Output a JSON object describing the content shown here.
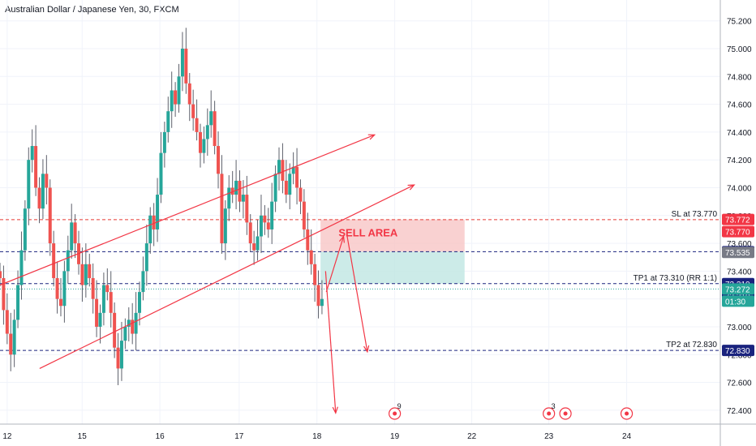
{
  "header": {
    "title": "Australian Dollar / Japanese Yen, 30, FXCM"
  },
  "colors": {
    "up": "#26a69a",
    "down": "#ef5350",
    "wick": "#5d606b",
    "sell_zone": "#f7c6c6",
    "tp_zone": "#bfe6e2",
    "sl_line": "#e53935",
    "tp_line": "#1a237e",
    "arrow": "#f23645",
    "grid": "#f0f3fa",
    "axis_text": "#131722",
    "price_badge": "#1a237e",
    "current_badge": "#26a69a",
    "sl_badge": "#f23645"
  },
  "chart_data": {
    "type": "candlestick",
    "title": "Australian Dollar / Japanese Yen, 30, FXCM",
    "ylim": [
      72.3,
      75.35
    ],
    "y_ticks": [
      "72.400",
      "72.600",
      "72.800",
      "73.000",
      "73.200",
      "73.400",
      "73.600",
      "73.800",
      "74.000",
      "74.200",
      "74.400",
      "74.600",
      "74.800",
      "75.000",
      "75.200"
    ],
    "x_ticks": [
      {
        "label": "12",
        "pos": 0.01
      },
      {
        "label": "15",
        "pos": 0.114
      },
      {
        "label": "16",
        "pos": 0.222
      },
      {
        "label": "17",
        "pos": 0.332
      },
      {
        "label": "18",
        "pos": 0.44
      },
      {
        "label": "19",
        "pos": 0.548
      },
      {
        "label": "22",
        "pos": 0.655
      },
      {
        "label": "23",
        "pos": 0.762
      },
      {
        "label": "24",
        "pos": 0.87
      }
    ],
    "closes": [
      73.35,
      73.12,
      72.95,
      72.8,
      73.05,
      73.3,
      73.55,
      73.85,
      74.2,
      74.3,
      74.0,
      73.85,
      74.1,
      74.0,
      73.6,
      73.35,
      73.2,
      73.15,
      73.4,
      73.55,
      73.75,
      73.6,
      73.45,
      73.3,
      73.45,
      73.35,
      73.2,
      73.0,
      73.1,
      73.3,
      73.25,
      73.1,
      72.85,
      72.7,
      72.9,
      73.0,
      73.05,
      72.95,
      73.1,
      73.25,
      73.4,
      73.6,
      73.8,
      73.7,
      73.95,
      74.25,
      74.4,
      74.55,
      74.7,
      74.6,
      74.8,
      75.0,
      74.75,
      74.6,
      74.5,
      74.4,
      74.25,
      74.35,
      74.45,
      74.55,
      74.3,
      74.1,
      73.6,
      73.85,
      74.0,
      73.95,
      74.05,
      73.9,
      73.95,
      73.75,
      73.6,
      73.55,
      73.65,
      73.8,
      73.75,
      73.7,
      73.9,
      74.1,
      74.2,
      74.05,
      73.95,
      74.1,
      74.15,
      74.0,
      73.9,
      73.7,
      73.55,
      73.45,
      73.3,
      73.15,
      73.2
    ],
    "annotations": {
      "sell_area_label": "SELL AREA",
      "sl_label": "SL at 73.770",
      "tp1_label": "TP1 at 73.310 (RR 1:1)",
      "tp2_label": "TP2 at 72.830"
    },
    "levels": {
      "sell_top": 73.772,
      "sl": 73.77,
      "entry": 73.54,
      "tp1": 73.31,
      "current": 73.272,
      "tp2": 72.83
    },
    "price_badges": [
      {
        "text": "73.772",
        "value": 73.772,
        "kind": "sl"
      },
      {
        "text": "73.770",
        "value": 73.77,
        "kind": "sl"
      },
      {
        "text": "73.540",
        "value": 73.54,
        "kind": "level"
      },
      {
        "text": "73.535",
        "value": 73.535,
        "kind": "gray"
      },
      {
        "text": "73.310",
        "value": 73.31,
        "kind": "level"
      },
      {
        "text": "73.310",
        "value": 73.31,
        "kind": "level"
      },
      {
        "text": "73.272",
        "value": 73.272,
        "kind": "current"
      },
      {
        "text": "01:30",
        "value": 73.272,
        "kind": "current_time"
      },
      {
        "text": "72.830",
        "value": 72.83,
        "kind": "level"
      }
    ],
    "events": [
      {
        "label": "9",
        "pos": 0.548
      },
      {
        "label": "3",
        "pos": 0.762
      },
      {
        "label": "",
        "pos": 0.785
      },
      {
        "label": "",
        "pos": 0.87
      }
    ]
  }
}
